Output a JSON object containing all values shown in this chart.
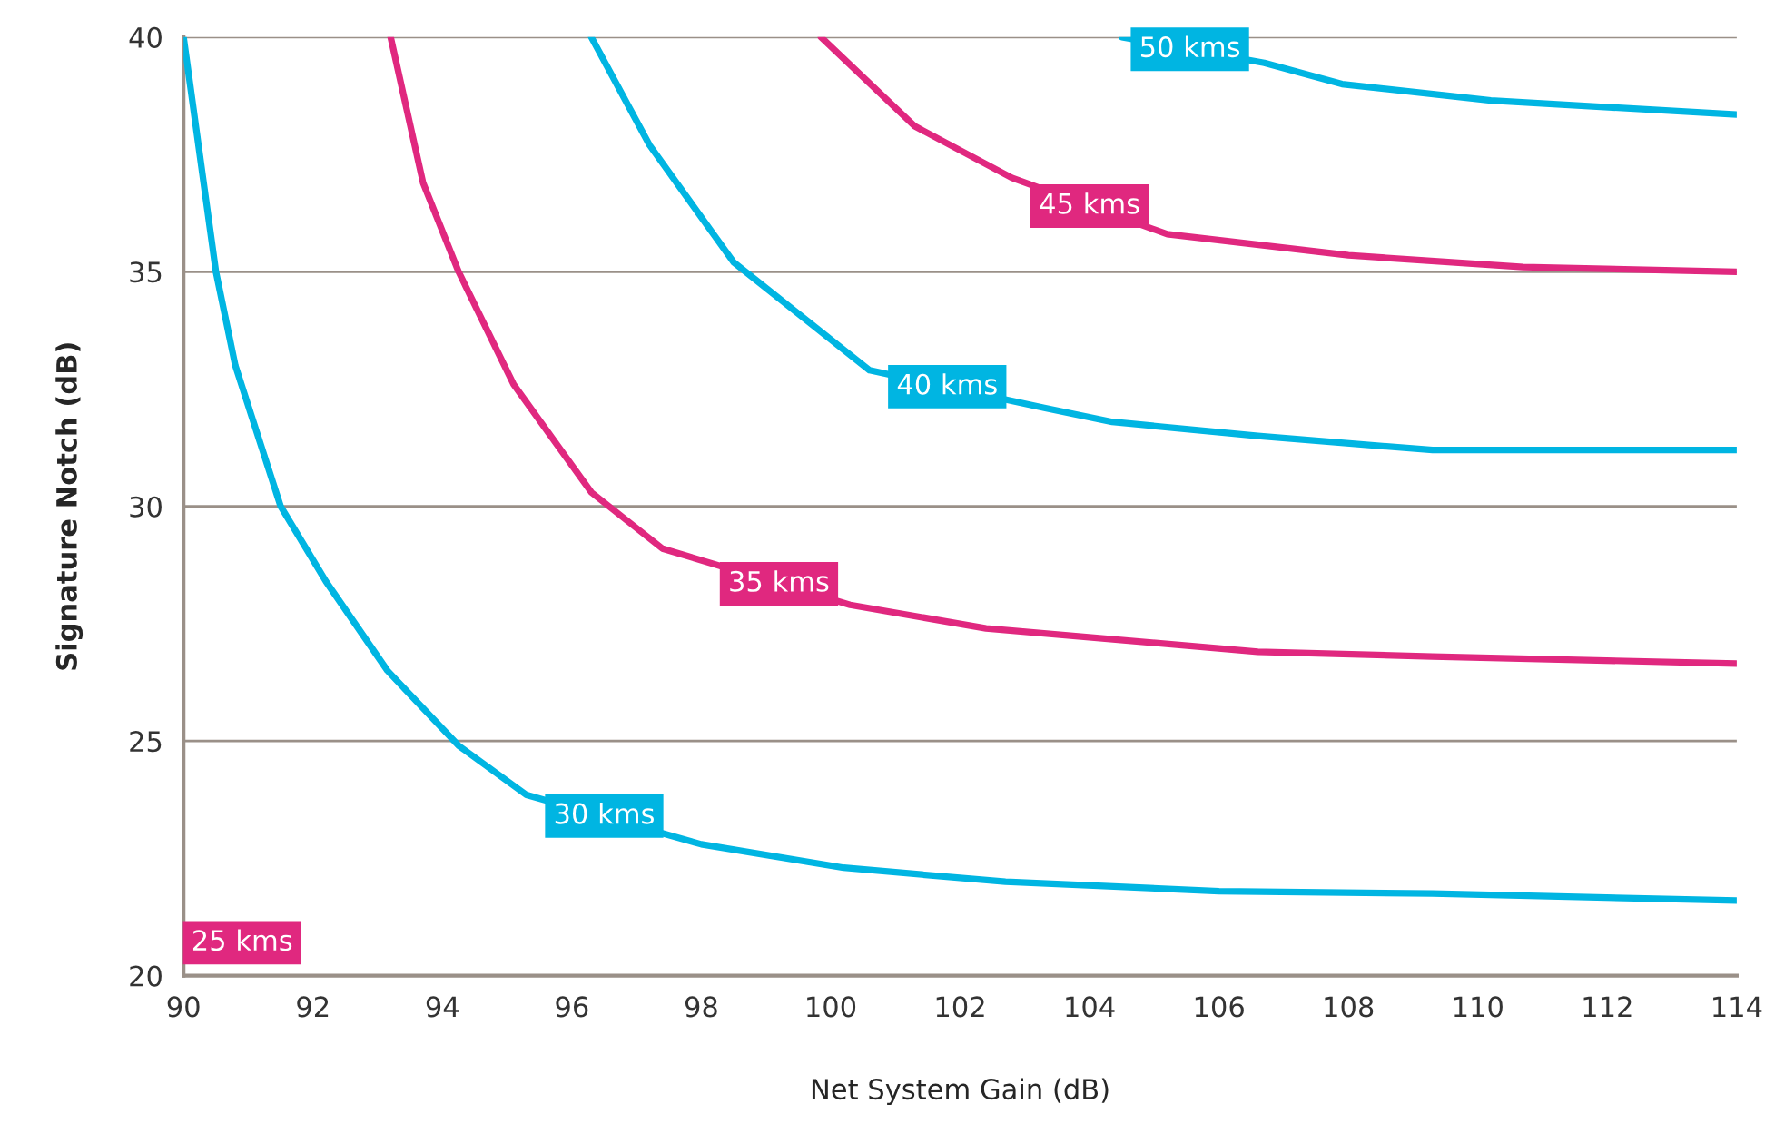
{
  "chart_data": {
    "type": "line",
    "xlabel": "Net System Gain (dB)",
    "ylabel": "Signature Notch (dB)",
    "xlim": [
      90,
      114
    ],
    "xticks": [
      90,
      92,
      94,
      96,
      98,
      100,
      102,
      104,
      106,
      108,
      110,
      112,
      114
    ],
    "ylim": [
      20,
      40
    ],
    "yticks": [
      20,
      25,
      30,
      35,
      40
    ],
    "grid": "y",
    "line_style": "solid",
    "series": [
      {
        "color": "#00b5e2",
        "x": [
          90,
          90.5,
          90.8,
          91.5,
          92.2,
          93.15,
          94.25,
          95.3,
          98,
          100.2,
          102.7,
          106,
          109.3,
          114
        ],
        "values": [
          40,
          35,
          33,
          30,
          28.4,
          26.5,
          24.9,
          23.85,
          22.8,
          22.3,
          22,
          21.8,
          21.75,
          21.6
        ]
      },
      {
        "color": "#e0287f",
        "x": [
          93.2,
          93.7,
          94.25,
          95.1,
          96.3,
          97.4,
          100.3,
          102.4,
          106.6,
          109.3,
          114
        ],
        "values": [
          40,
          36.9,
          35,
          32.6,
          30.3,
          29.1,
          27.9,
          27.4,
          26.9,
          26.8,
          26.65
        ]
      },
      {
        "color": "#00b5e2",
        "x": [
          96.3,
          97.2,
          98.5,
          100.6,
          103.3,
          104.35,
          106.6,
          109.3,
          114
        ],
        "values": [
          40,
          37.7,
          35.2,
          32.9,
          32.1,
          31.8,
          31.5,
          31.2,
          31.2
        ]
      },
      {
        "color": "#e0287f",
        "x": [
          99.85,
          101.3,
          102.8,
          105.2,
          108,
          110.7,
          114
        ],
        "values": [
          40,
          38.1,
          37,
          35.8,
          35.35,
          35.1,
          35
        ]
      },
      {
        "color": "#00b5e2",
        "x": [
          104.5,
          106.7,
          107.9,
          110.2,
          114
        ],
        "values": [
          40,
          39.45,
          39,
          38.65,
          38.35
        ]
      }
    ],
    "annotations": [
      "25 kms",
      {
        "text": "30 kms",
        "x": 96.5,
        "y": 23.4
      },
      {
        "text": "35 kms",
        "x": 99.2,
        "y": 28.35
      },
      {
        "text": "40 kms",
        "x": 101.8,
        "y": 32.55
      },
      {
        "text": "45 kms",
        "x": 104,
        "y": 36.4
      },
      {
        "text": "50 kms",
        "x": 105.55,
        "y": 39.74
      }
    ]
  }
}
